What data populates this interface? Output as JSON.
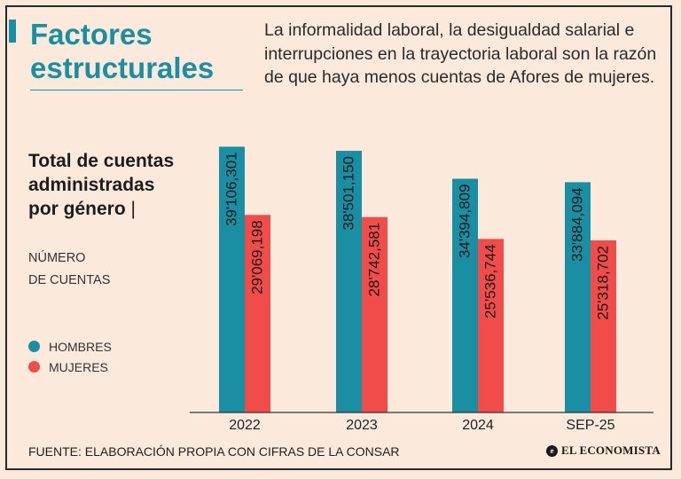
{
  "header": {
    "title": "Factores estructurales",
    "intro": "La informalidad laboral, la desigualdad salarial e interrupciones en la trayectoria laboral son la razón de que haya menos cuentas de Afores de mujeres."
  },
  "subtitle": {
    "main": "Total de cuentas administradas por género",
    "separator": "|",
    "unit_line1": "NÚMERO",
    "unit_line2": "DE CUENTAS"
  },
  "legend": [
    {
      "label": "HOMBRES",
      "color": "#1a8fa3"
    },
    {
      "label": "MUJERES",
      "color": "#ef4c4a"
    }
  ],
  "footer": {
    "source": "FUENTE: ELABORACIÓN PROPIA CON CIFRAS DE LA CONSAR",
    "logo": "EL ECONOMISTA",
    "logo_mark": "e"
  },
  "chart_data": {
    "type": "bar",
    "categories": [
      "2022",
      "2023",
      "2024",
      "SEP-25"
    ],
    "series": [
      {
        "name": "HOMBRES",
        "color": "#1a8fa3",
        "values": [
          39106301,
          38501150,
          34394809,
          33884094
        ],
        "labels": [
          "39'106,301",
          "38'501,150",
          "34'394,809",
          "33'884,094"
        ]
      },
      {
        "name": "MUJERES",
        "color": "#ef4c4a",
        "values": [
          29069198,
          28742581,
          25536744,
          25318702
        ],
        "labels": [
          "29'069,198",
          "28'742,581",
          "25'536,744",
          "25'318,702"
        ]
      }
    ],
    "title": "Total de cuentas administradas por género",
    "xlabel": "",
    "ylabel": "NÚMERO DE CUENTAS",
    "ylim": [
      0,
      40200000
    ]
  }
}
